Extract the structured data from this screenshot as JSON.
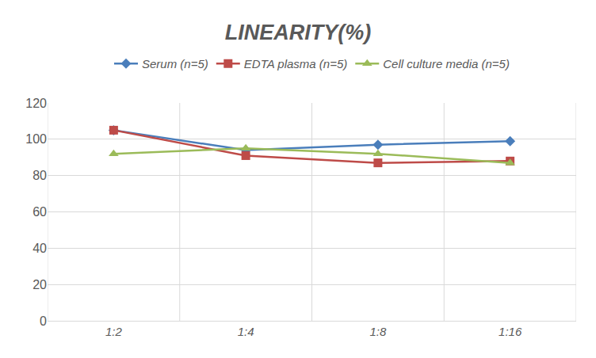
{
  "chart_data": {
    "type": "line",
    "title": "LINEARITY(%)",
    "categories": [
      "1:2",
      "1:4",
      "1:8",
      "1:16"
    ],
    "series": [
      {
        "name": "Serum (n=5)",
        "color": "#4a7ebb",
        "marker": "diamond",
        "values": [
          105,
          94,
          97,
          99
        ]
      },
      {
        "name": "EDTA plasma (n=5)",
        "color": "#be4b48",
        "marker": "square",
        "values": [
          105,
          91,
          87,
          88
        ]
      },
      {
        "name": "Cell culture media (n=5)",
        "color": "#9bbb59",
        "marker": "triangle-up",
        "values": [
          92,
          95,
          92,
          87
        ]
      }
    ],
    "ylim": [
      0,
      120
    ],
    "yticks": [
      0,
      20,
      40,
      60,
      80,
      100,
      120
    ],
    "grid": true,
    "legend": "top"
  }
}
